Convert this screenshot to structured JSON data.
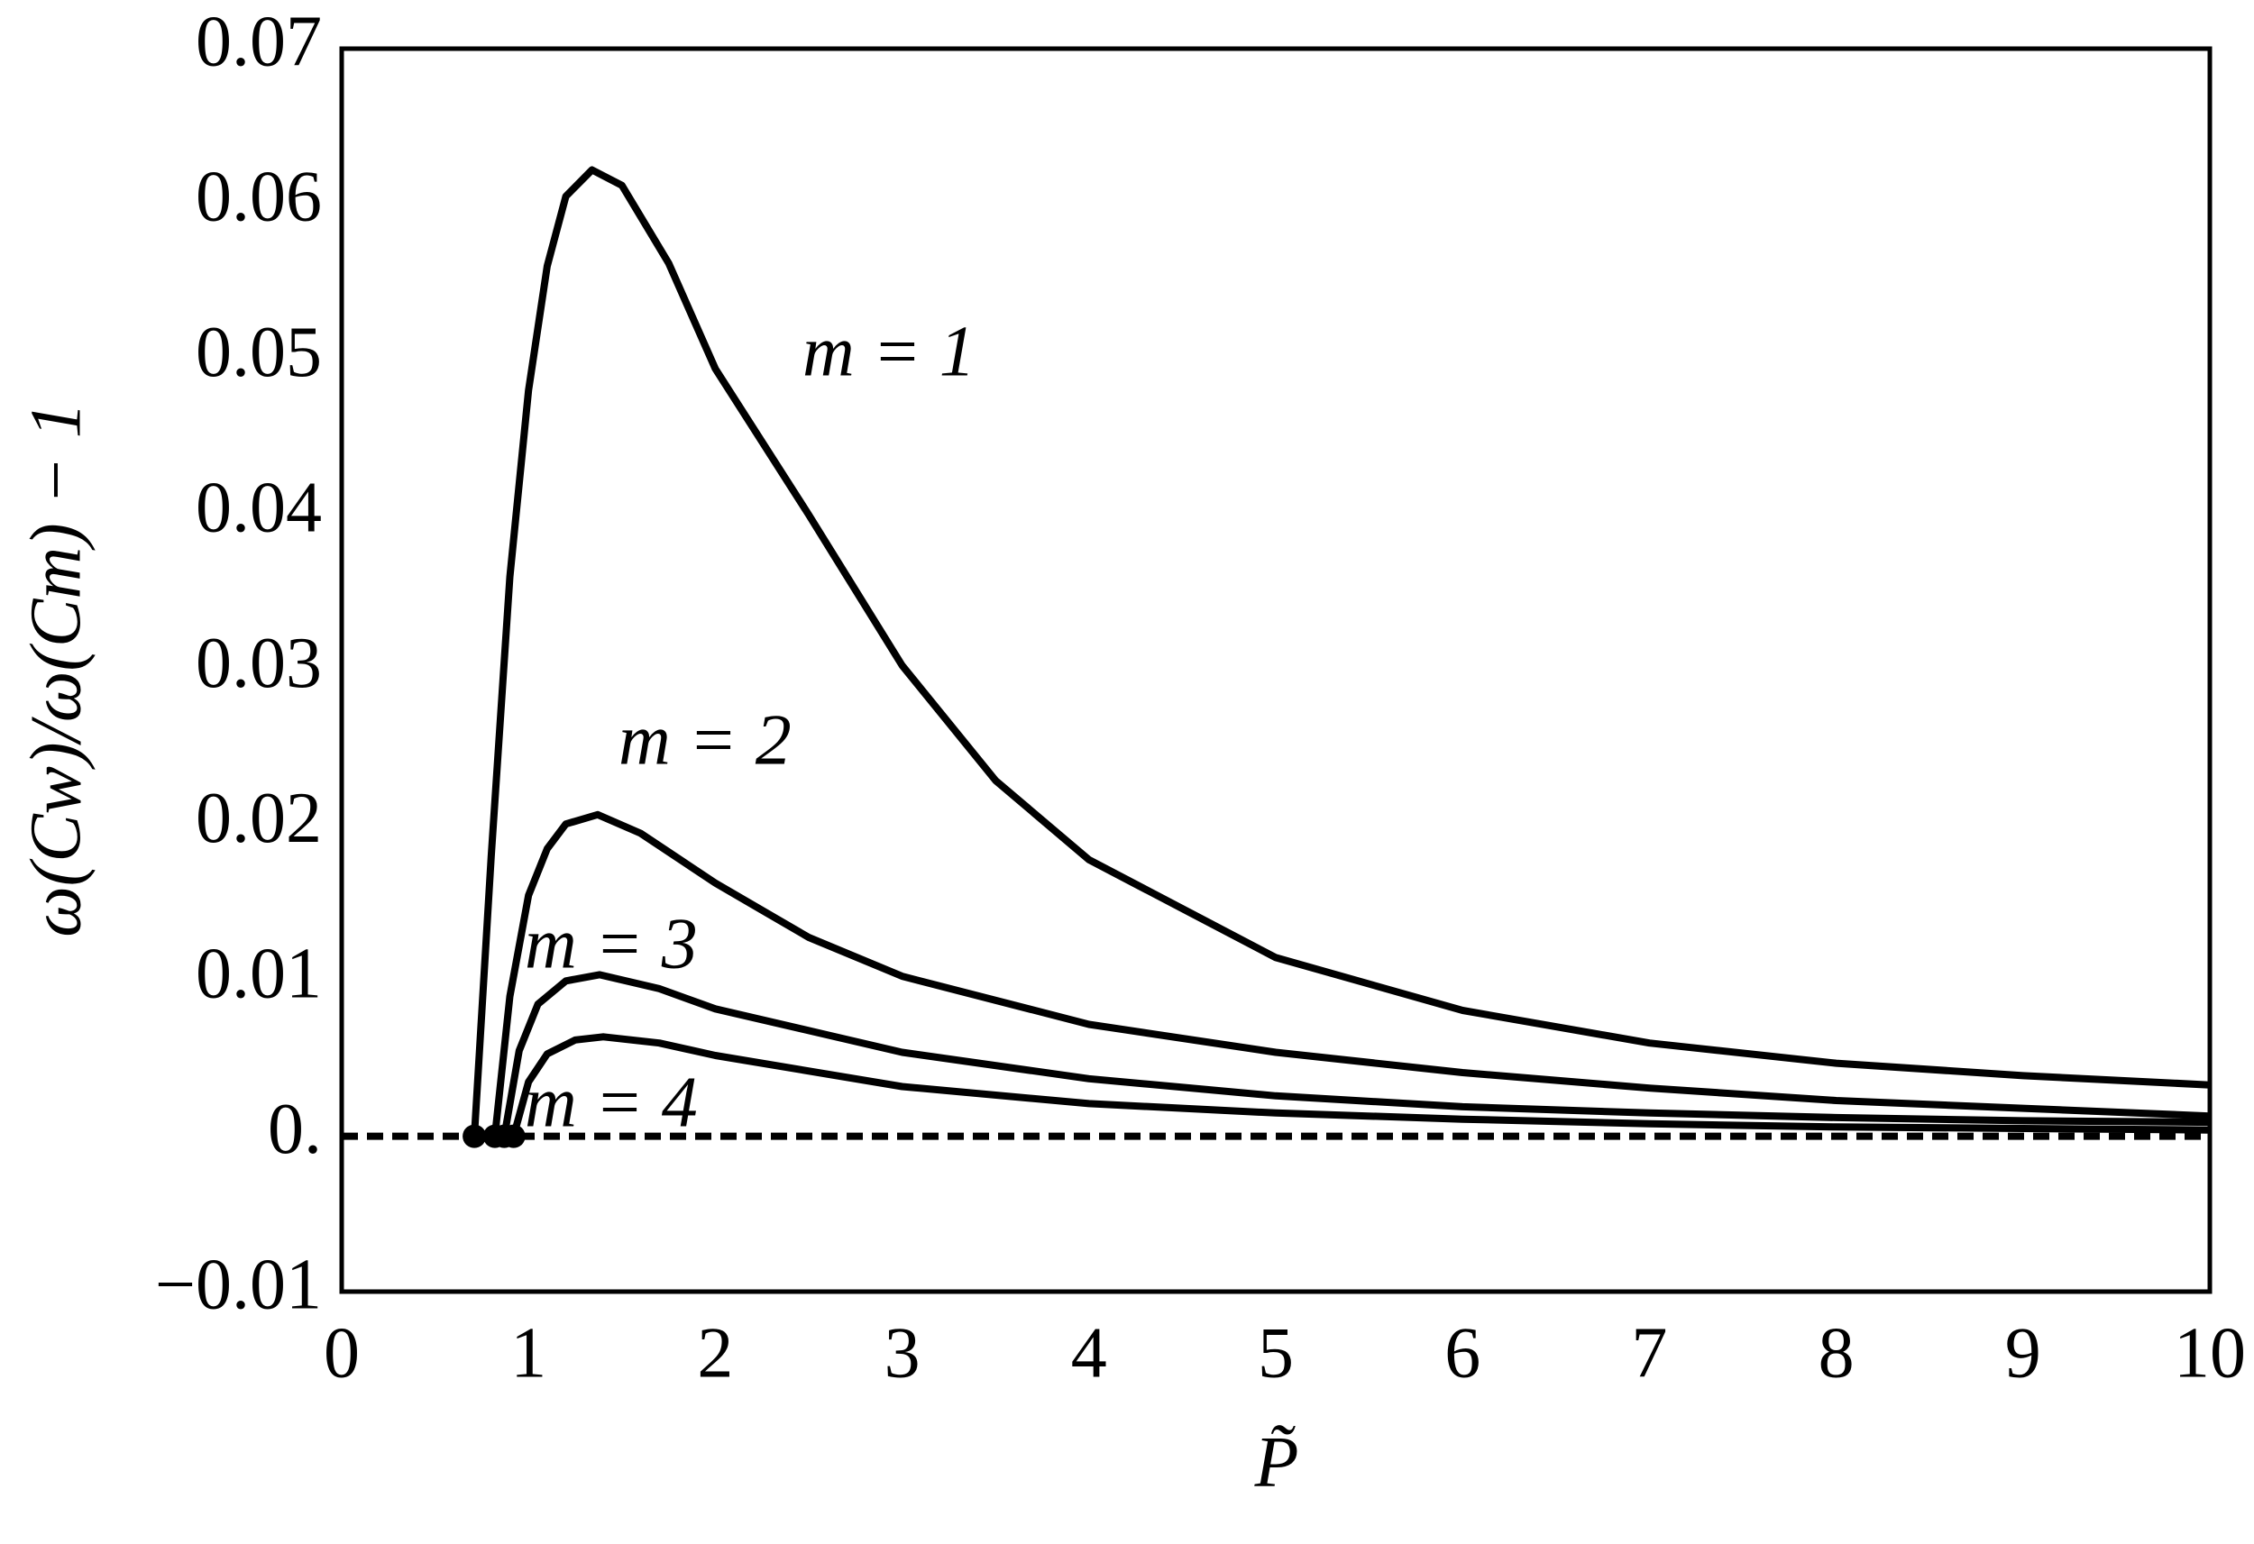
{
  "chart_data": {
    "type": "line",
    "x_label": "P̃",
    "y_label": "ω(Cw)/ω(Cm) − 1",
    "xlim": [
      0,
      10
    ],
    "xticks": [
      0,
      1,
      2,
      3,
      4,
      5,
      6,
      7,
      8,
      9,
      10
    ],
    "ylim": [
      -0.01,
      0.07
    ],
    "yticks": [
      {
        "value": -0.01,
        "label": "−0.01"
      },
      {
        "value": 0,
        "label": "0."
      },
      0.01,
      0.02,
      0.03,
      0.04,
      0.05,
      0.06,
      0.07
    ],
    "grid": false,
    "reference_line": 0,
    "series": [
      {
        "name": "m = 1",
        "color": "#000000",
        "x": [
          0.71,
          0.75,
          0.8,
          0.9,
          1.0,
          1.1,
          1.2,
          1.34,
          1.5,
          1.75,
          2,
          2.5,
          3,
          3.5,
          4,
          5,
          6,
          7,
          8,
          9,
          10
        ],
        "values": [
          0,
          0.008,
          0.018,
          0.036,
          0.048,
          0.056,
          0.0605,
          0.0622,
          0.0612,
          0.0562,
          0.0494,
          0.04,
          0.0303,
          0.0229,
          0.0178,
          0.0115,
          0.0081,
          0.006,
          0.0047,
          0.0039,
          0.0033
        ]
      },
      {
        "name": "m = 2",
        "color": "#000000",
        "x": [
          0.82,
          0.9,
          1.0,
          1.1,
          1.2,
          1.37,
          1.6,
          2,
          2.5,
          3,
          4,
          5,
          6,
          7,
          8,
          9,
          10
        ],
        "values": [
          0,
          0.009,
          0.0155,
          0.0185,
          0.0201,
          0.0207,
          0.0195,
          0.0163,
          0.0128,
          0.0103,
          0.0072,
          0.0054,
          0.0041,
          0.0031,
          0.0023,
          0.0018,
          0.0013
        ]
      },
      {
        "name": "m = 3",
        "color": "#000000",
        "x": [
          0.87,
          0.95,
          1.05,
          1.2,
          1.38,
          1.7,
          2,
          3,
          4,
          5,
          6,
          7,
          8,
          9,
          10
        ],
        "values": [
          0,
          0.0055,
          0.0085,
          0.01,
          0.0104,
          0.0095,
          0.0082,
          0.0054,
          0.0037,
          0.0026,
          0.0019,
          0.0015,
          0.0012,
          0.001,
          0.0009
        ]
      },
      {
        "name": "m = 4",
        "color": "#000000",
        "x": [
          0.92,
          1.0,
          1.1,
          1.25,
          1.4,
          1.7,
          2,
          3,
          4,
          5,
          6,
          7,
          8,
          9,
          10
        ],
        "values": [
          0,
          0.0035,
          0.0053,
          0.0062,
          0.0064,
          0.006,
          0.0052,
          0.0032,
          0.0021,
          0.0015,
          0.0011,
          0.0008,
          0.0006,
          0.0005,
          0.0004
        ]
      }
    ]
  }
}
